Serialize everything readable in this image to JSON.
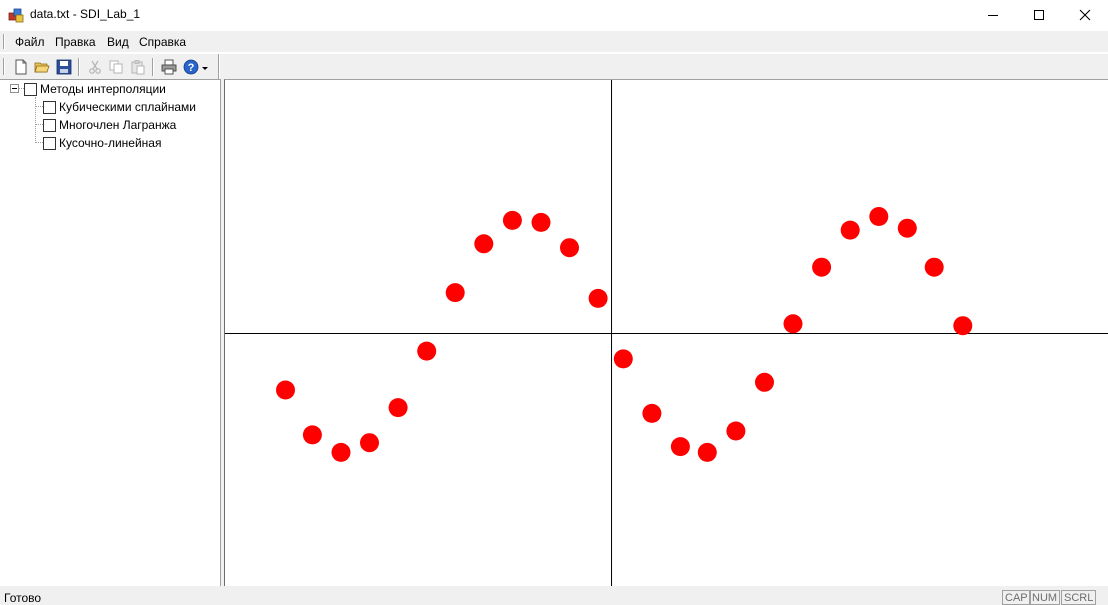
{
  "window": {
    "title": "data.txt - SDI_Lab_1",
    "icon": "app-icon"
  },
  "menu": {
    "items": [
      {
        "label": "Файл"
      },
      {
        "label": "Правка"
      },
      {
        "label": "Вид"
      },
      {
        "label": "Справка"
      }
    ]
  },
  "toolbar": {
    "buttons": [
      {
        "icon": "new-file-icon",
        "enabled": true
      },
      {
        "icon": "open-folder-icon",
        "enabled": true
      },
      {
        "icon": "save-disk-icon",
        "enabled": true
      },
      {
        "icon": "cut-icon",
        "enabled": false
      },
      {
        "icon": "copy-icon",
        "enabled": false
      },
      {
        "icon": "paste-icon",
        "enabled": false
      },
      {
        "icon": "print-icon",
        "enabled": true
      },
      {
        "icon": "help-icon",
        "enabled": true
      }
    ]
  },
  "tree": {
    "root": {
      "label": "Методы интерполяции",
      "checked": false,
      "expanded": true
    },
    "children": [
      {
        "label": "Кубическими сплайнами",
        "checked": false
      },
      {
        "label": "Многочлен Лагранжа",
        "checked": false
      },
      {
        "label": "Кусочно-линейная",
        "checked": false
      }
    ]
  },
  "status": {
    "text": "Готово",
    "indicators": [
      "CAP",
      "NUM",
      "SCRL"
    ]
  },
  "chart_data": {
    "type": "scatter",
    "title": "",
    "xlabel": "",
    "ylabel": "",
    "grid": false,
    "axes": "crossing at origin",
    "point_color": "#ff0000",
    "xlim": [
      -11.5,
      14.8
    ],
    "ylim": [
      -1.3,
      1.3
    ],
    "series": [
      {
        "x": [
          -9.7,
          -8.9,
          -8.05,
          -7.2,
          -6.35,
          -5.5,
          -4.65,
          -3.8,
          -2.95,
          -2.1,
          -1.25,
          -0.4,
          0.35,
          1.2,
          2.05,
          2.85,
          3.7,
          4.55,
          5.4,
          6.25,
          7.1,
          7.95,
          8.8,
          9.6,
          10.45
        ],
        "y": [
          -0.29,
          -0.52,
          -0.61,
          -0.56,
          -0.38,
          -0.09,
          0.21,
          0.46,
          0.58,
          0.57,
          0.44,
          0.18,
          -0.13,
          -0.41,
          -0.58,
          -0.61,
          -0.5,
          -0.25,
          0.05,
          0.34,
          0.53,
          0.6,
          0.54,
          0.34,
          0.04
        ]
      }
    ]
  }
}
